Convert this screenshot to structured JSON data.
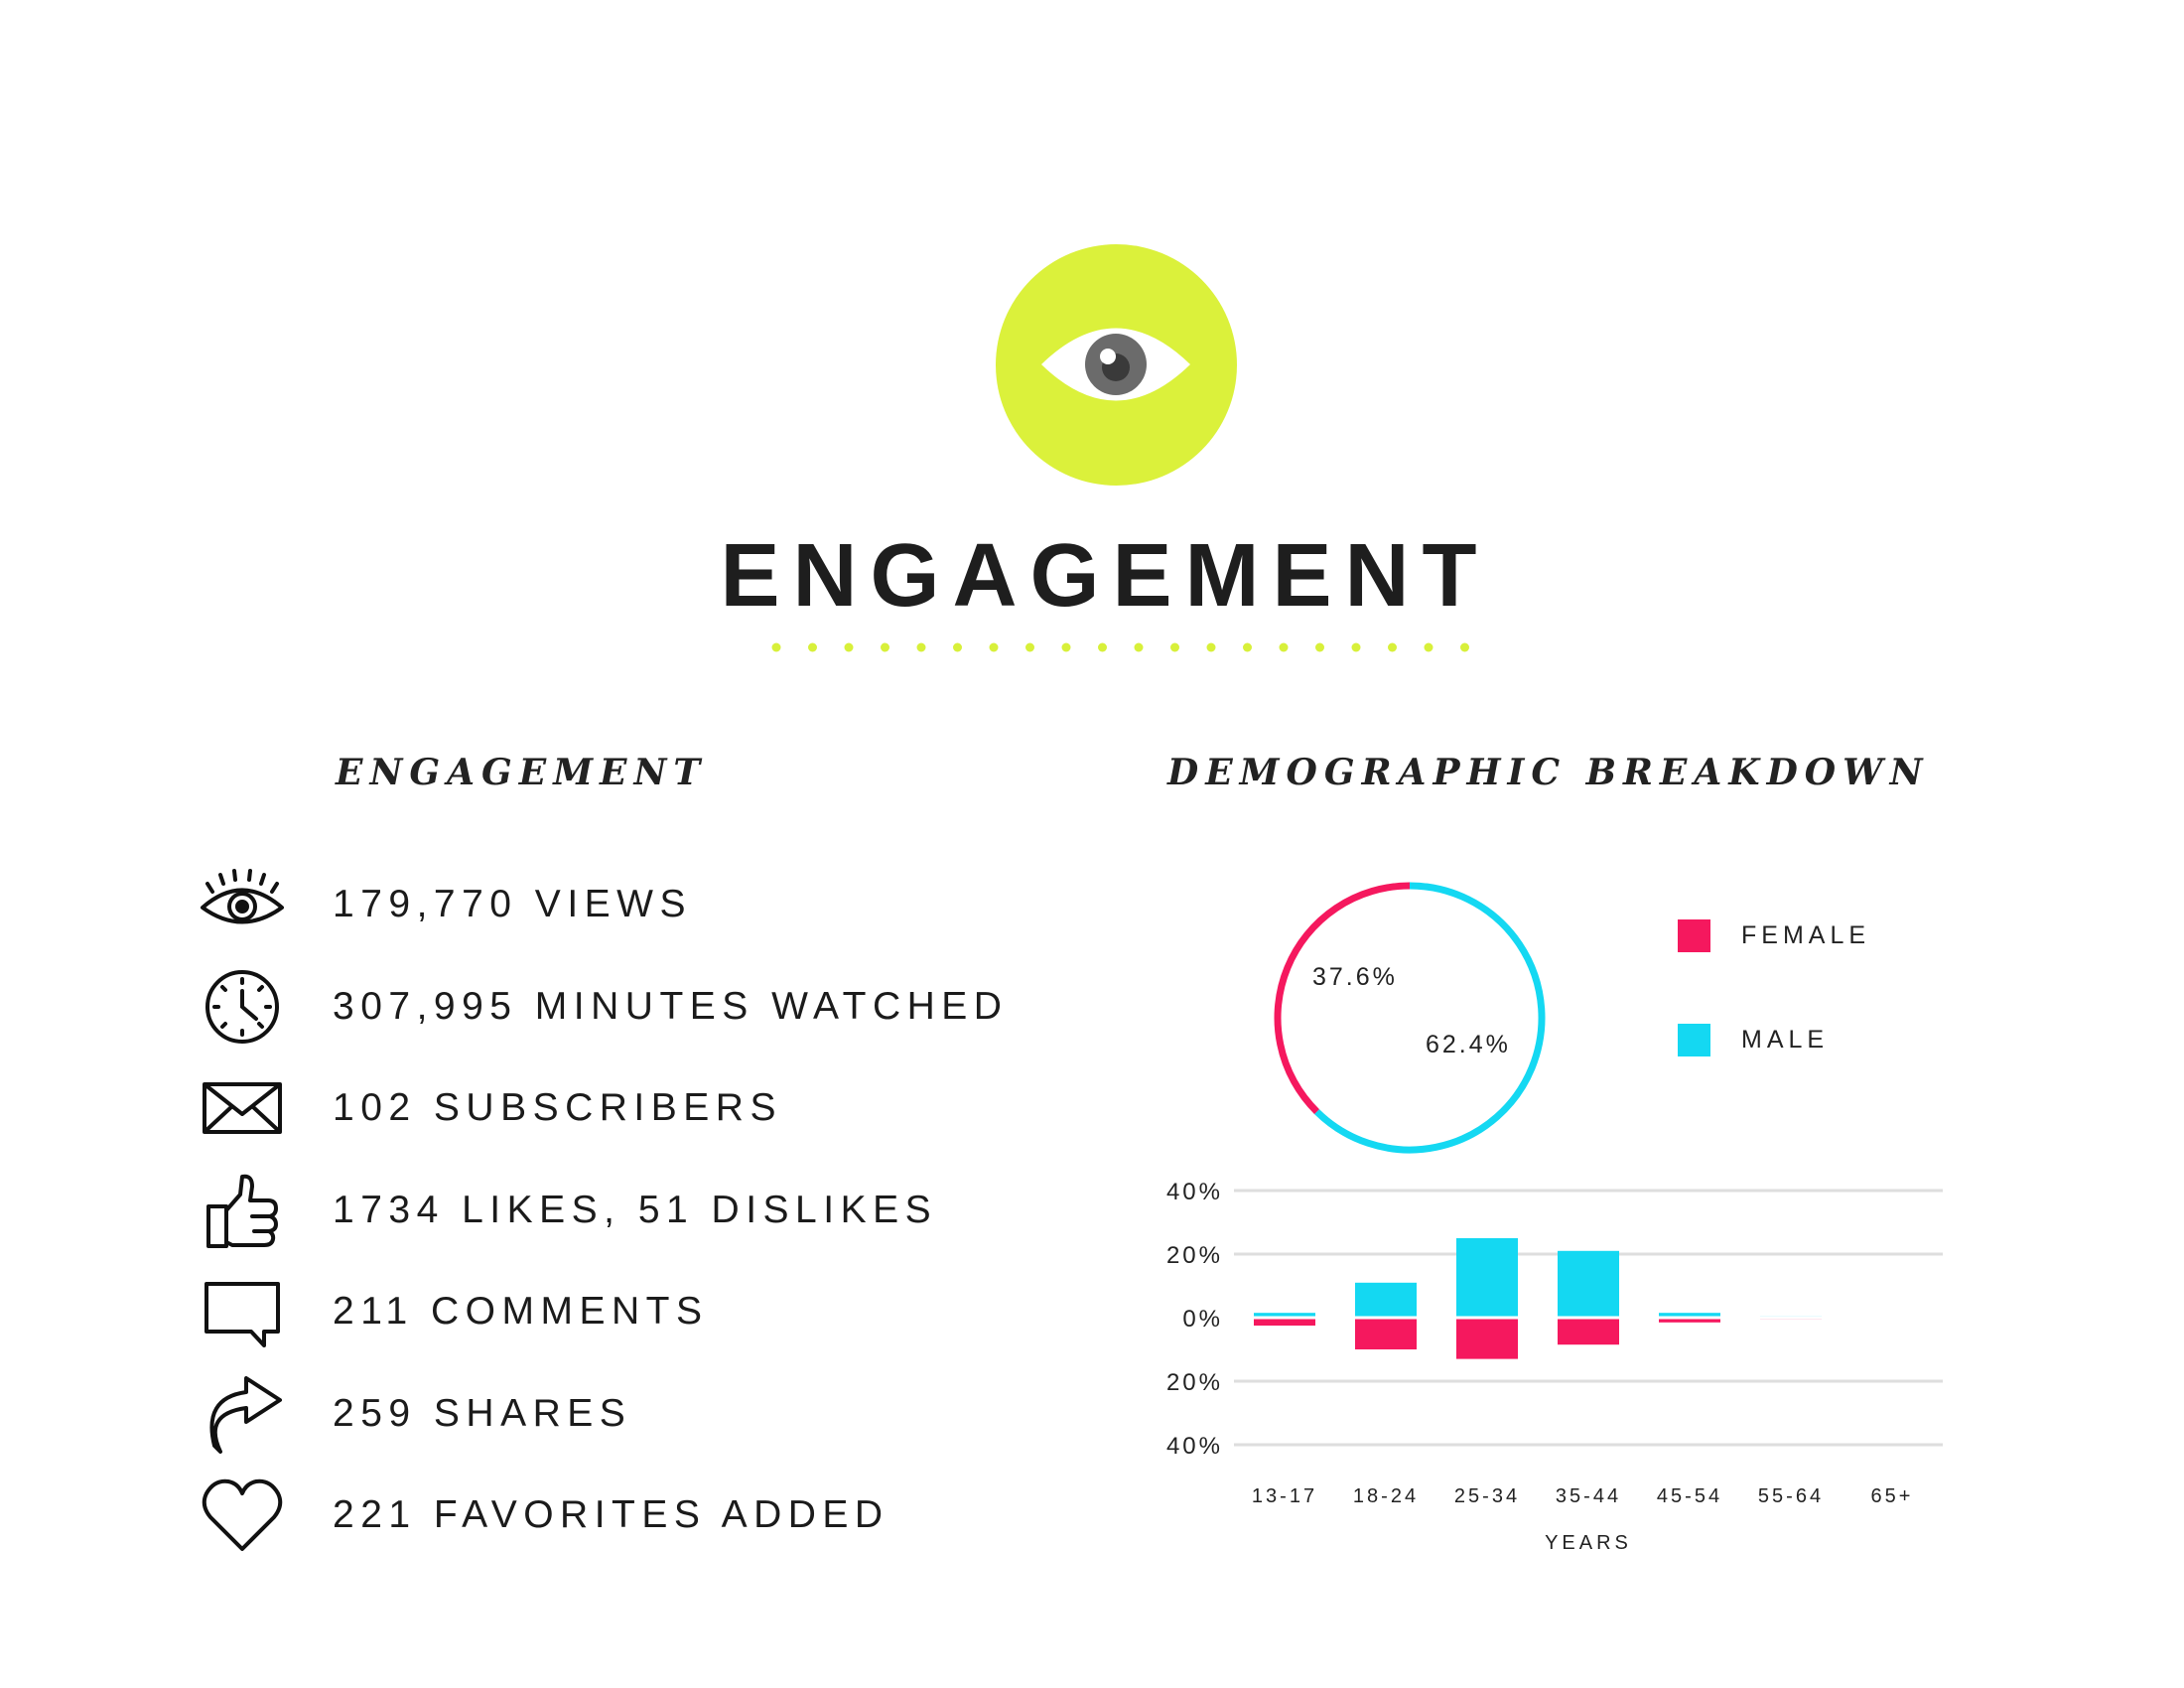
{
  "header": {
    "title": "ENGAGEMENT",
    "badge_icon": "eye-icon",
    "badge_color": "#dbf13b",
    "dot_color": "#d8f03a"
  },
  "engagement": {
    "heading": "ENGAGEMENT",
    "stats": [
      {
        "icon": "eye-icon",
        "label": "179,770 VIEWS"
      },
      {
        "icon": "clock-icon",
        "label": "307,995 MINUTES WATCHED"
      },
      {
        "icon": "envelope-icon",
        "label": "102 SUBSCRIBERS"
      },
      {
        "icon": "thumbs-up-icon",
        "label": "1734 LIKES, 51 DISLIKES"
      },
      {
        "icon": "comment-icon",
        "label": "211 COMMENTS"
      },
      {
        "icon": "share-arrow-icon",
        "label": "259 SHARES"
      },
      {
        "icon": "heart-icon",
        "label": "221 FAVORITES ADDED"
      }
    ]
  },
  "demographic": {
    "heading": "DEMOGRAPHIC BREAKDOWN"
  },
  "chart_data": [
    {
      "type": "pie",
      "variant": "donut",
      "slices": [
        {
          "name": "FEMALE",
          "value": 37.6,
          "label": "37.6%",
          "color": "#f5185e"
        },
        {
          "name": "MALE",
          "value": 62.4,
          "label": "62.4%",
          "color": "#14d8f2"
        }
      ],
      "legend": "right",
      "legend_entries": [
        "FEMALE",
        "MALE"
      ]
    },
    {
      "type": "bar",
      "variant": "diverging-stacked",
      "categories": [
        "13-17",
        "18-24",
        "25-34",
        "35-44",
        "45-54",
        "55-64",
        "65+"
      ],
      "series": [
        {
          "name": "MALE",
          "color": "#14d8f2",
          "direction": "up",
          "values": [
            1.5,
            11,
            25,
            21,
            1.5,
            0.5,
            0.4
          ]
        },
        {
          "name": "FEMALE",
          "color": "#f5185e",
          "direction": "down",
          "values": [
            2.5,
            10,
            13,
            8.5,
            1.5,
            0.5,
            0.2
          ]
        }
      ],
      "y_ticks": [
        "40%",
        "20%",
        "0%",
        "20%",
        "40%"
      ],
      "ylim": [
        -40,
        40
      ],
      "xlabel": "YEARS",
      "grid": true
    }
  ]
}
